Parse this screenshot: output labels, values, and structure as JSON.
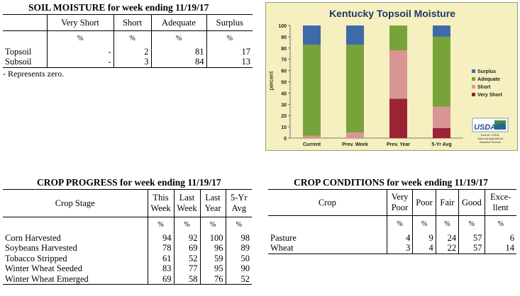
{
  "soil": {
    "title": "SOIL MOISTURE for week ending 11/19/17",
    "headers": [
      "Very Short",
      "Short",
      "Adequate",
      "Surplus"
    ],
    "unit": "%",
    "rows": [
      {
        "label": "Topsoil",
        "values": [
          "-",
          "2",
          "81",
          "17"
        ]
      },
      {
        "label": "Subsoil",
        "values": [
          "-",
          "3",
          "84",
          "13"
        ]
      }
    ],
    "note": "- Represents zero."
  },
  "progress": {
    "title": "CROP PROGRESS for week ending 11/19/17",
    "stage_header": "Crop Stage",
    "col_headers": [
      {
        "l1": "This",
        "l2": "Week"
      },
      {
        "l1": "Last",
        "l2": "Week"
      },
      {
        "l1": "Last",
        "l2": "Year"
      },
      {
        "l1": "5-Yr",
        "l2": "Avg"
      }
    ],
    "unit": "%",
    "rows": [
      {
        "label": "Corn Harvested",
        "values": [
          "94",
          "92",
          "100",
          "98"
        ]
      },
      {
        "label": "Soybeans Harvested",
        "values": [
          "78",
          "69",
          "96",
          "89"
        ]
      },
      {
        "label": "Tobacco Stripped",
        "values": [
          "61",
          "52",
          "59",
          "50"
        ]
      },
      {
        "label": "Winter Wheat Seeded",
        "values": [
          "83",
          "77",
          "95",
          "90"
        ]
      },
      {
        "label": "Winter Wheat Emerged",
        "values": [
          "69",
          "58",
          "76",
          "52"
        ]
      }
    ]
  },
  "conditions": {
    "title": "CROP CONDITIONS for week ending 11/19/17",
    "crop_header": "Crop",
    "col_headers": [
      {
        "l1": "Very",
        "l2": "Poor"
      },
      {
        "l1": "Poor",
        "l2": ""
      },
      {
        "l1": "Fair",
        "l2": ""
      },
      {
        "l1": "Good",
        "l2": ""
      },
      {
        "l1": "Exce-",
        "l2": "llent"
      }
    ],
    "unit": "%",
    "rows": [
      {
        "label": "Pasture",
        "values": [
          "4",
          "9",
          "24",
          "57",
          "6"
        ]
      },
      {
        "label": "Wheat",
        "values": [
          "3",
          "4",
          "22",
          "57",
          "14"
        ]
      }
    ]
  },
  "chart_data": {
    "type": "bar",
    "stacked": true,
    "title": "Kentucky Topsoil Moisture",
    "ylabel": "percent",
    "xlabel": "",
    "ylim": [
      0,
      100
    ],
    "yticks": [
      0,
      10,
      20,
      30,
      40,
      50,
      60,
      70,
      80,
      90,
      100
    ],
    "grid": false,
    "legend_position": "right",
    "categories": [
      "Current",
      "Prev. Week",
      "Prev. Year",
      "5-Yr Avg"
    ],
    "series": [
      {
        "name": "Very Short",
        "color": "#9b2335",
        "values": [
          0,
          0,
          35,
          9
        ]
      },
      {
        "name": "Short",
        "color": "#d99594",
        "values": [
          2,
          5,
          43,
          19
        ]
      },
      {
        "name": "Adequate",
        "color": "#77a33a",
        "values": [
          81,
          78,
          22,
          62
        ]
      },
      {
        "name": "Surplus",
        "color": "#3f6aaa",
        "values": [
          17,
          17,
          0,
          10
        ]
      }
    ],
    "legend_order": [
      "Surplus",
      "Adequate",
      "Short",
      "Very Short"
    ],
    "logo": {
      "text": "USDA",
      "source_lines": [
        "Source: USDA,",
        "National Agricultural",
        "Statistics Service"
      ]
    }
  }
}
